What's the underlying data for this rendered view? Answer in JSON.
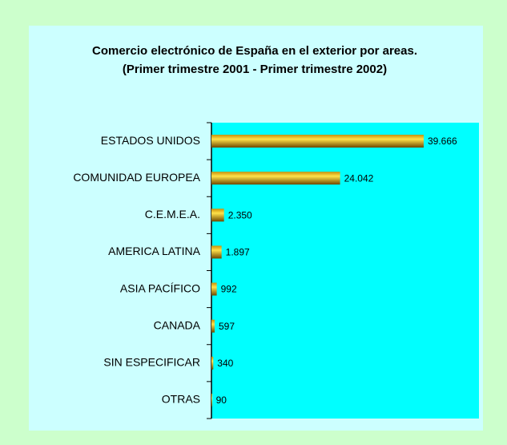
{
  "chart_data": {
    "type": "hbar",
    "title": "Comercio electrónico de España en el exterior por areas.",
    "subtitle": "(Primer trimestre 2001 - Primer trimestre 2002)",
    "categories": [
      "ESTADOS UNIDOS",
      "COMUNIDAD EUROPEA",
      "C.E.M.E.A.",
      "AMERICA LATINA",
      "ASIA PACÍFICO",
      "CANADA",
      "SIN ESPECIFICAR",
      "OTRAS"
    ],
    "values": [
      39666,
      24042,
      2350,
      1897,
      992,
      597,
      340,
      90
    ],
    "value_labels": [
      "39.666",
      "24.042",
      "2.350",
      "1.897",
      "992",
      "597",
      "340",
      "90"
    ],
    "xlim": [
      0,
      50000
    ],
    "color": "#e0b020"
  }
}
